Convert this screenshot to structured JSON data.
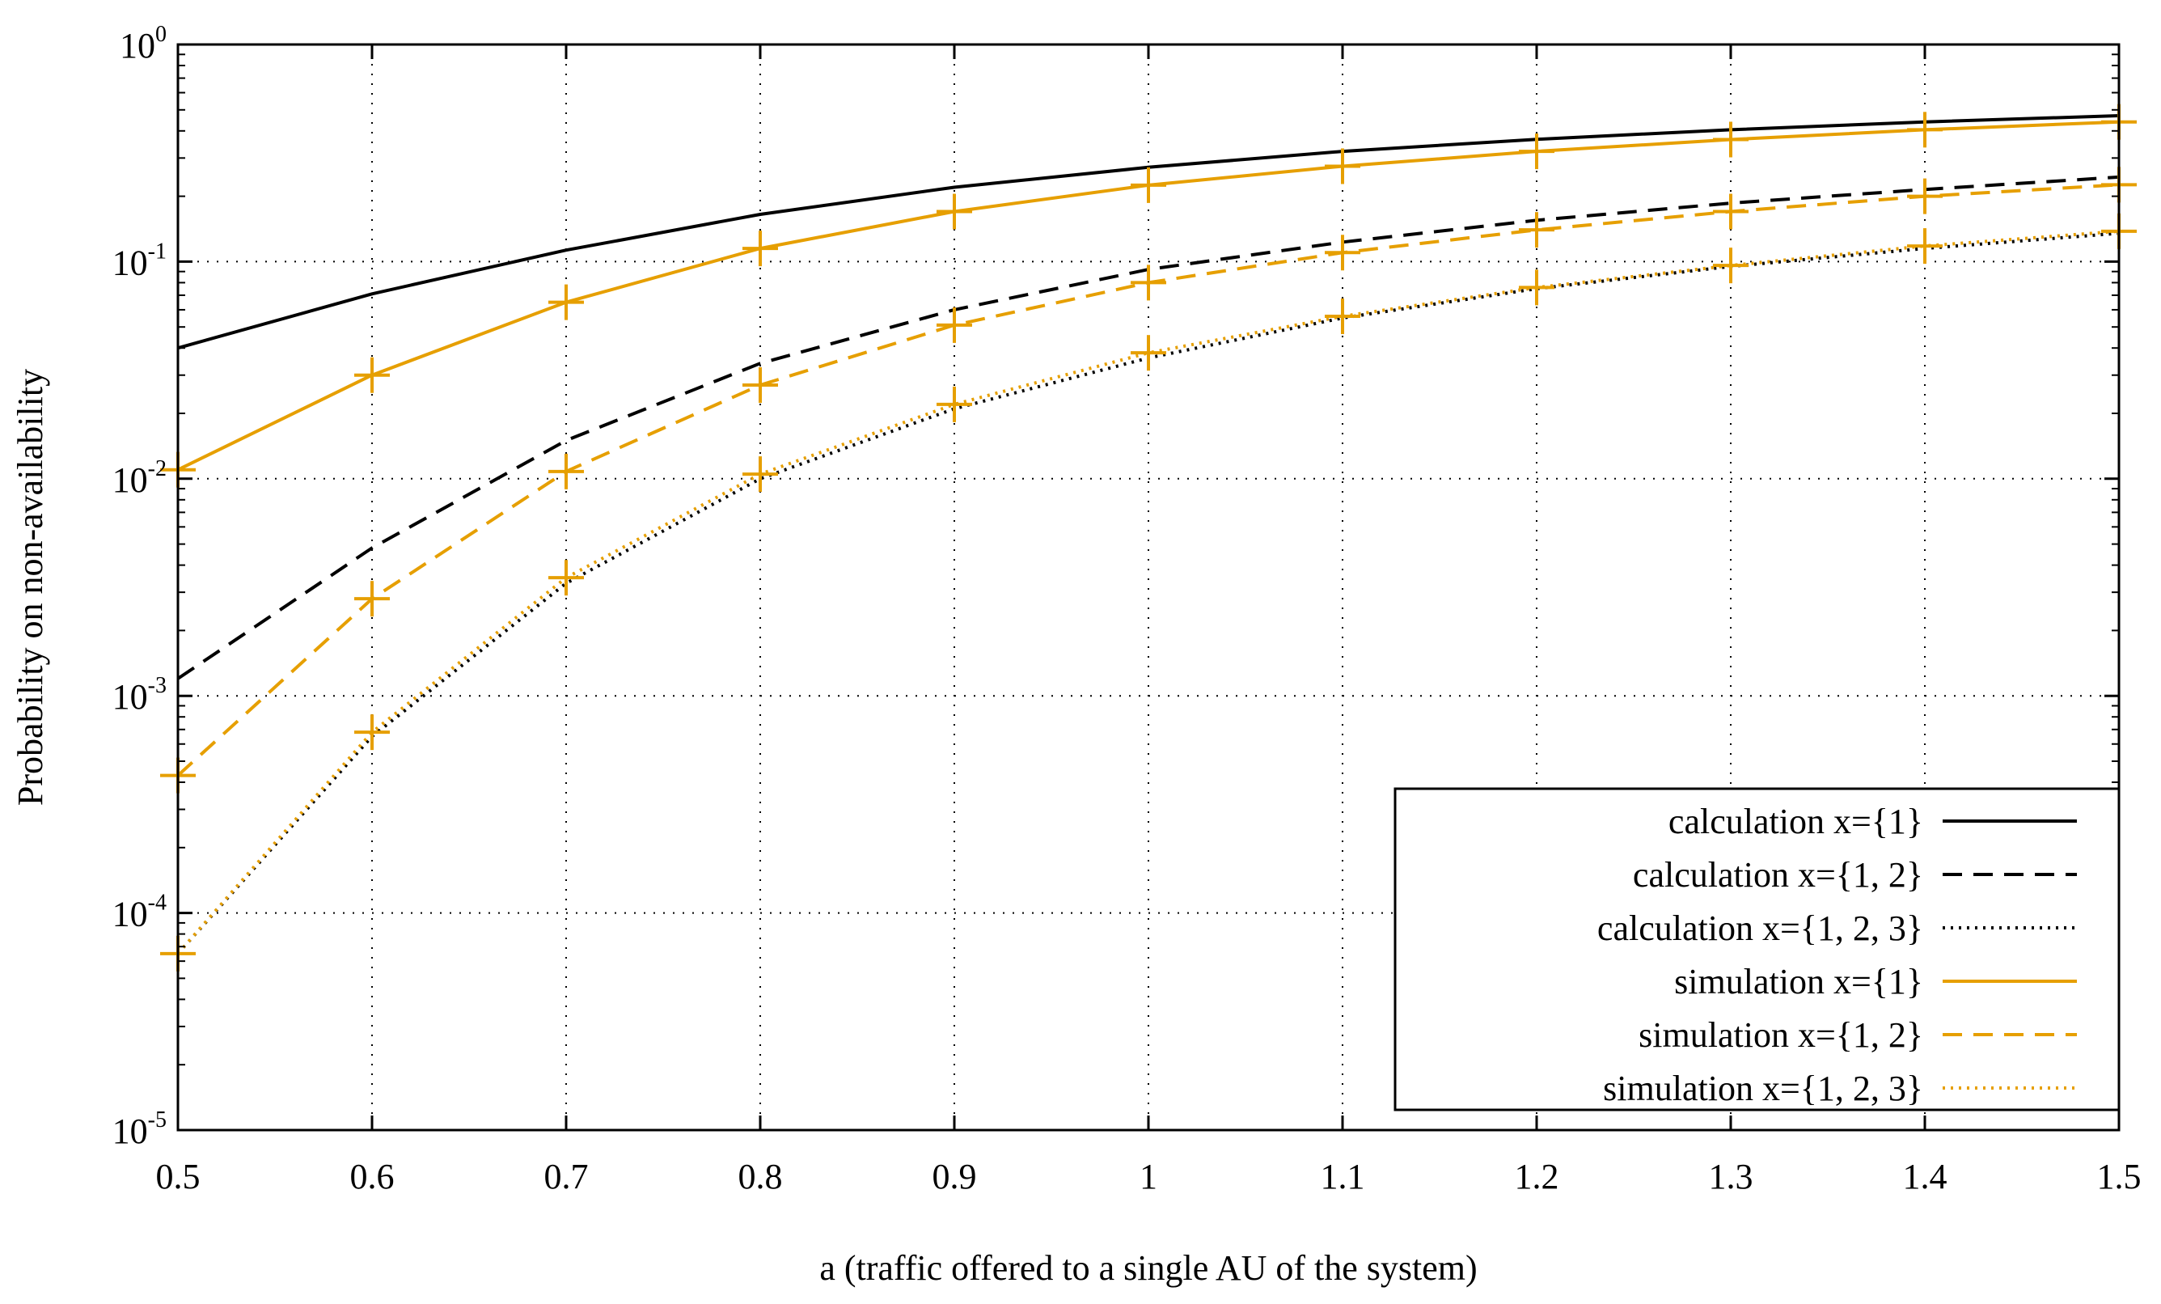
{
  "chart_data": {
    "type": "line",
    "title": "",
    "xlabel": "a (traffic offered to a single AU of the system)",
    "ylabel": "Probability on non-availability",
    "xlim": [
      0.5,
      1.5
    ],
    "ylim": [
      1e-05,
      1
    ],
    "y_scale": "log",
    "grid": true,
    "legend_position": "bottom-right",
    "x_ticks": [
      "0.5",
      "0.6",
      "0.7",
      "0.8",
      "0.9",
      "1",
      "1.1",
      "1.2",
      "1.3",
      "1.4",
      "1.5"
    ],
    "y_ticks": [
      {
        "base": "10",
        "exp": "0",
        "value": 1
      },
      {
        "base": "10",
        "exp": "-1",
        "value": 0.1
      },
      {
        "base": "10",
        "exp": "-2",
        "value": 0.01
      },
      {
        "base": "10",
        "exp": "-3",
        "value": 0.001
      },
      {
        "base": "10",
        "exp": "-4",
        "value": 0.0001
      },
      {
        "base": "10",
        "exp": "-5",
        "value": 1e-05
      }
    ],
    "colors": {
      "calculation": "#000000",
      "simulation": "#e69f00",
      "grid": "#000000"
    },
    "x": [
      0.5,
      0.6,
      0.7,
      0.8,
      0.9,
      1.0,
      1.1,
      1.2,
      1.3,
      1.4,
      1.5
    ],
    "series": [
      {
        "name": "calculation  x={1}",
        "color": "#000000",
        "dash": "solid",
        "markers": false,
        "values": [
          0.04,
          0.071,
          0.113,
          0.165,
          0.22,
          0.272,
          0.322,
          0.366,
          0.405,
          0.44,
          0.47
        ]
      },
      {
        "name": "calculation  x={1, 2}",
        "color": "#000000",
        "dash": "dashed",
        "markers": false,
        "values": [
          0.0012,
          0.0048,
          0.015,
          0.034,
          0.06,
          0.092,
          0.123,
          0.155,
          0.186,
          0.215,
          0.245
        ]
      },
      {
        "name": "calculation  x={1, 2, 3}",
        "color": "#000000",
        "dash": "dotted",
        "markers": false,
        "values": [
          6.5e-05,
          0.00065,
          0.0033,
          0.01,
          0.021,
          0.036,
          0.055,
          0.075,
          0.095,
          0.115,
          0.135
        ]
      },
      {
        "name": "simulation  x={1}",
        "color": "#e69f00",
        "dash": "solid",
        "markers": true,
        "values": [
          0.011,
          0.03,
          0.065,
          0.115,
          0.17,
          0.225,
          0.275,
          0.322,
          0.365,
          0.405,
          0.44
        ]
      },
      {
        "name": "simulation  x={1, 2}",
        "color": "#e69f00",
        "dash": "dashed",
        "markers": true,
        "values": [
          0.00043,
          0.0028,
          0.0108,
          0.027,
          0.051,
          0.08,
          0.11,
          0.14,
          0.17,
          0.2,
          0.226
        ]
      },
      {
        "name": "simulation  x={1, 2, 3}",
        "color": "#e69f00",
        "dash": "dotted",
        "markers": true,
        "values": [
          6.5e-05,
          0.00068,
          0.0035,
          0.0105,
          0.022,
          0.038,
          0.056,
          0.076,
          0.096,
          0.118,
          0.138
        ]
      }
    ]
  }
}
